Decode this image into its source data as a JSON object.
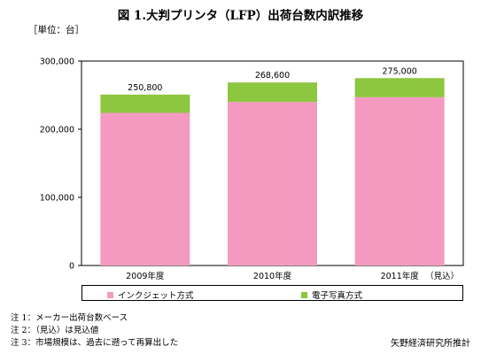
{
  "title": "図 1.大判プリンタ（LFP）出荷台数内訳推移",
  "unit_label": "［単位：台］",
  "chart_data": {
    "type": "bar",
    "stacked": true,
    "categories": [
      "2009年度",
      "2010年度",
      "2011年度"
    ],
    "category_suffixes": [
      "",
      "",
      "（見込）"
    ],
    "series": [
      {
        "name": "インクジェット方式",
        "values": [
          224000,
          240000,
          247000
        ],
        "color": "#f49ac1"
      },
      {
        "name": "電子写真方式",
        "values": [
          26800,
          28600,
          28000
        ],
        "color": "#8dc63f"
      }
    ],
    "totals": [
      "250,800",
      "268,600",
      "275,000"
    ],
    "y_ticks": [
      "0",
      "100,000",
      "200,000",
      "300,000"
    ],
    "y_tick_values": [
      0,
      100000,
      200000,
      300000
    ],
    "ylim": [
      0,
      300000
    ],
    "grid": false,
    "legend_position": "bottom"
  },
  "notes": [
    "注 1：メーカー出荷台数ベース",
    "注 2：（見込）は見込値",
    "注 3：市場規模は、過去に遡って再算出した"
  ],
  "source": "矢野経済研究所推計"
}
